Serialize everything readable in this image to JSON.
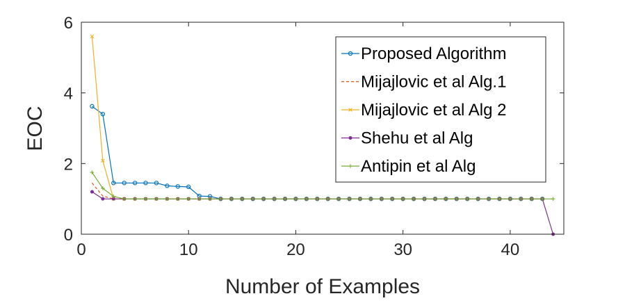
{
  "chart_data": {
    "type": "line",
    "title": "",
    "xlabel": "Number of Examples",
    "ylabel": "EOC",
    "xlim": [
      0,
      45
    ],
    "ylim": [
      0,
      6
    ],
    "xticks": [
      "0",
      "10",
      "20",
      "30",
      "40"
    ],
    "yticks": [
      "0",
      "2",
      "4",
      "6"
    ],
    "grid": false,
    "legend_position": "top-right",
    "series": [
      {
        "name": "Proposed Algorithm",
        "color": "#0072BD",
        "line_style": "solid",
        "marker": "circle",
        "x": [
          1,
          2,
          3,
          4,
          5,
          6,
          7,
          8,
          9,
          10,
          11,
          12,
          13,
          14,
          15,
          16,
          17,
          18,
          19,
          20,
          21,
          22,
          23,
          24,
          25,
          26,
          27,
          28,
          29,
          30,
          31,
          32,
          33,
          34,
          35,
          36,
          37,
          38,
          39,
          40,
          41,
          42,
          43
        ],
        "y": [
          3.62,
          3.4,
          1.45,
          1.45,
          1.45,
          1.45,
          1.45,
          1.37,
          1.35,
          1.34,
          1.08,
          1.07,
          1.0,
          1.0,
          1.0,
          1.0,
          1.0,
          1.0,
          1.0,
          1.0,
          1.0,
          1.0,
          1.0,
          1.0,
          1.0,
          1.0,
          1.0,
          1.0,
          1.0,
          1.0,
          1.0,
          1.0,
          1.0,
          1.0,
          1.0,
          1.0,
          1.0,
          1.0,
          1.0,
          1.0,
          1.0,
          1.0,
          1.0
        ]
      },
      {
        "name": "Mijajlovic et al Alg.1",
        "color": "#D95319",
        "line_style": "dashed",
        "marker": "none",
        "x": [
          1,
          2,
          3,
          4,
          5,
          6,
          7,
          8,
          9,
          10,
          11,
          12,
          13,
          14,
          15,
          16,
          17,
          18,
          19,
          20,
          21,
          22,
          23,
          24,
          25,
          26,
          27,
          28,
          29,
          30,
          31,
          32,
          33,
          34,
          35,
          36,
          37,
          38,
          39,
          40,
          41,
          42,
          43
        ],
        "y": [
          1.45,
          1.08,
          1.0,
          1.0,
          1.0,
          1.0,
          1.0,
          1.0,
          1.0,
          1.0,
          1.0,
          1.0,
          1.0,
          1.0,
          1.0,
          1.0,
          1.0,
          1.0,
          1.0,
          1.0,
          1.0,
          1.0,
          1.0,
          1.0,
          1.0,
          1.0,
          1.0,
          1.0,
          1.0,
          1.0,
          1.0,
          1.0,
          1.0,
          1.0,
          1.0,
          1.0,
          1.0,
          1.0,
          1.0,
          1.0,
          1.0,
          1.0,
          1.0
        ]
      },
      {
        "name": "Mijajlovic et al Alg 2",
        "color": "#EDB120",
        "line_style": "solid",
        "marker": "x",
        "x": [
          1,
          2,
          3,
          4,
          5,
          6,
          7,
          8,
          9,
          10,
          11,
          12,
          13,
          14,
          15,
          16,
          17,
          18,
          19,
          20,
          21,
          22,
          23,
          24,
          25,
          26,
          27,
          28,
          29,
          30,
          31,
          32,
          33,
          34,
          35,
          36,
          37,
          38,
          39,
          40,
          41,
          42,
          43
        ],
        "y": [
          5.6,
          2.08,
          1.0,
          1.0,
          1.0,
          1.0,
          1.0,
          1.0,
          1.0,
          1.0,
          1.0,
          1.0,
          1.0,
          1.0,
          1.0,
          1.0,
          1.0,
          1.0,
          1.0,
          1.0,
          1.0,
          1.0,
          1.0,
          1.0,
          1.0,
          1.0,
          1.0,
          1.0,
          1.0,
          1.0,
          1.0,
          1.0,
          1.0,
          1.0,
          1.0,
          1.0,
          1.0,
          1.0,
          1.0,
          1.0,
          1.0,
          1.0,
          1.0
        ]
      },
      {
        "name": "Shehu et al Alg",
        "color": "#7E2F8E",
        "line_style": "solid",
        "marker": "dot",
        "x": [
          1,
          2,
          3,
          4,
          5,
          6,
          7,
          8,
          9,
          10,
          11,
          12,
          13,
          14,
          15,
          16,
          17,
          18,
          19,
          20,
          21,
          22,
          23,
          24,
          25,
          26,
          27,
          28,
          29,
          30,
          31,
          32,
          33,
          34,
          35,
          36,
          37,
          38,
          39,
          40,
          41,
          42,
          43,
          44
        ],
        "y": [
          1.2,
          1.0,
          1.0,
          1.0,
          1.0,
          1.0,
          1.0,
          1.0,
          1.0,
          1.0,
          1.0,
          1.0,
          1.0,
          1.0,
          1.0,
          1.0,
          1.0,
          1.0,
          1.0,
          1.0,
          1.0,
          1.0,
          1.0,
          1.0,
          1.0,
          1.0,
          1.0,
          1.0,
          1.0,
          1.0,
          1.0,
          1.0,
          1.0,
          1.0,
          1.0,
          1.0,
          1.0,
          1.0,
          1.0,
          1.0,
          1.0,
          1.0,
          1.0,
          0.0
        ]
      },
      {
        "name": "Antipin et al Alg",
        "color": "#77AC30",
        "line_style": "solid",
        "marker": "plus",
        "x": [
          1,
          2,
          3,
          4,
          5,
          6,
          7,
          8,
          9,
          10,
          11,
          12,
          13,
          14,
          15,
          16,
          17,
          18,
          19,
          20,
          21,
          22,
          23,
          24,
          25,
          26,
          27,
          28,
          29,
          30,
          31,
          32,
          33,
          34,
          35,
          36,
          37,
          38,
          39,
          40,
          41,
          42,
          43,
          44
        ],
        "y": [
          1.75,
          1.3,
          1.07,
          1.0,
          1.0,
          1.0,
          1.0,
          1.0,
          1.0,
          1.0,
          1.0,
          1.0,
          1.0,
          1.0,
          1.0,
          1.0,
          1.0,
          1.0,
          1.0,
          1.0,
          1.0,
          1.0,
          1.0,
          1.0,
          1.0,
          1.0,
          1.0,
          1.0,
          1.0,
          1.0,
          1.0,
          1.0,
          1.0,
          1.0,
          1.0,
          1.0,
          1.0,
          1.0,
          1.0,
          1.0,
          1.0,
          1.0,
          1.0,
          1.0
        ]
      }
    ]
  }
}
